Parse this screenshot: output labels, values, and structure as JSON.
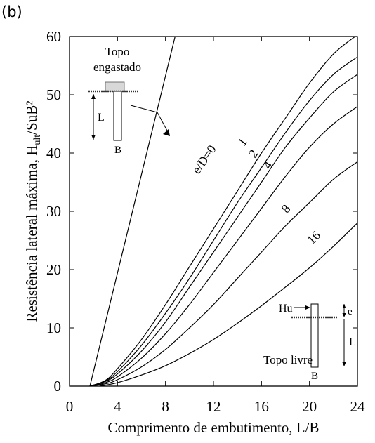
{
  "panel_label": "(b)",
  "chart_data": {
    "type": "line",
    "xlabel": "Comprimento de embutimento, L/B",
    "ylabel": "Resistência lateral máxima, H",
    "ylabel_sub": "ult",
    "ylabel_tail": "/SuB²",
    "xlim": [
      0,
      24
    ],
    "ylim": [
      0,
      60
    ],
    "xticks": [
      0,
      4,
      8,
      12,
      16,
      20,
      24
    ],
    "yticks": [
      0,
      10,
      20,
      30,
      40,
      50,
      60
    ],
    "grid": false,
    "series": [
      {
        "name": "Topo engastado",
        "points": [
          [
            1.7,
            0
          ],
          [
            8.8,
            60
          ]
        ]
      },
      {
        "name": "e/D=0",
        "points": [
          [
            1.7,
            0
          ],
          [
            3,
            1
          ],
          [
            4,
            3
          ],
          [
            6,
            8
          ],
          [
            8,
            14
          ],
          [
            10,
            20.5
          ],
          [
            12,
            27
          ],
          [
            14,
            33.5
          ],
          [
            16,
            40
          ],
          [
            18,
            46
          ],
          [
            20,
            52
          ],
          [
            22,
            57
          ],
          [
            23.8,
            60
          ]
        ]
      },
      {
        "name": "1",
        "points": [
          [
            1.7,
            0
          ],
          [
            3,
            0.9
          ],
          [
            4,
            2.5
          ],
          [
            6,
            7
          ],
          [
            8,
            12.5
          ],
          [
            10,
            18.5
          ],
          [
            12,
            25
          ],
          [
            14,
            31.5
          ],
          [
            16,
            37.5
          ],
          [
            18,
            43.5
          ],
          [
            20,
            49
          ],
          [
            22,
            53.5
          ],
          [
            24,
            56.5
          ]
        ]
      },
      {
        "name": "2",
        "points": [
          [
            1.7,
            0
          ],
          [
            3,
            0.8
          ],
          [
            4,
            2.1
          ],
          [
            6,
            6
          ],
          [
            8,
            11
          ],
          [
            10,
            17
          ],
          [
            12,
            23
          ],
          [
            14,
            29
          ],
          [
            16,
            35
          ],
          [
            18,
            41
          ],
          [
            20,
            46
          ],
          [
            22,
            50.5
          ],
          [
            24,
            53.5
          ]
        ]
      },
      {
        "name": "4",
        "points": [
          [
            1.7,
            0
          ],
          [
            3,
            0.6
          ],
          [
            4,
            1.6
          ],
          [
            6,
            4.8
          ],
          [
            8,
            9
          ],
          [
            10,
            14
          ],
          [
            12,
            19.5
          ],
          [
            14,
            25
          ],
          [
            16,
            30.5
          ],
          [
            18,
            36
          ],
          [
            20,
            41
          ],
          [
            22,
            45
          ],
          [
            24,
            48
          ]
        ]
      },
      {
        "name": "8",
        "points": [
          [
            1.7,
            0
          ],
          [
            3,
            0.4
          ],
          [
            4,
            1.1
          ],
          [
            6,
            3.3
          ],
          [
            8,
            6.3
          ],
          [
            10,
            10
          ],
          [
            12,
            14
          ],
          [
            14,
            18.5
          ],
          [
            16,
            23
          ],
          [
            18,
            27.5
          ],
          [
            20,
            31.5
          ],
          [
            22,
            35.5
          ],
          [
            24,
            38.5
          ]
        ]
      },
      {
        "name": "16",
        "points": [
          [
            2.5,
            0
          ],
          [
            4,
            0.6
          ],
          [
            6,
            1.9
          ],
          [
            8,
            3.5
          ],
          [
            10,
            5.6
          ],
          [
            12,
            8
          ],
          [
            14,
            10.8
          ],
          [
            16,
            13.8
          ],
          [
            18,
            17
          ],
          [
            20,
            20.3
          ],
          [
            22,
            24
          ],
          [
            24,
            28
          ]
        ]
      }
    ],
    "curve_labels": [
      {
        "text": "e/D=0",
        "x": 11.5,
        "y": 38.5,
        "angle": -55
      },
      {
        "text": "1",
        "x": 14.7,
        "y": 41.5,
        "angle": -55
      },
      {
        "text": "2",
        "x": 15.6,
        "y": 39.5,
        "angle": -55
      },
      {
        "text": "4",
        "x": 16.8,
        "y": 37.5,
        "angle": -55
      },
      {
        "text": "8",
        "x": 18.3,
        "y": 30,
        "angle": -50
      },
      {
        "text": "16",
        "x": 20.6,
        "y": 25,
        "angle": -45
      }
    ],
    "annotations": {
      "top_fixed_line1": "Topo",
      "top_fixed_line2": "engastado",
      "top_fixed_L": "L",
      "top_fixed_B": "B",
      "free_Hu": "Hu",
      "free_e": "e",
      "free_L": "L",
      "free_caption": "Topo livre",
      "free_B": "B"
    }
  }
}
